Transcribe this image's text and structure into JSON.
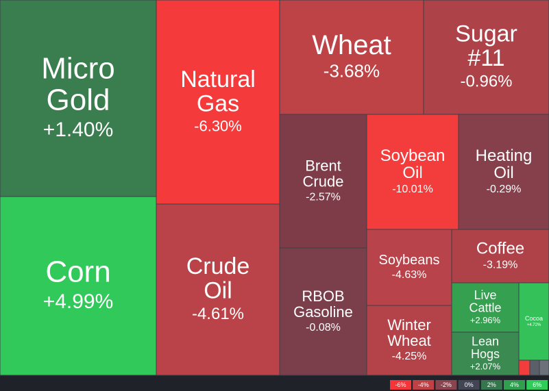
{
  "chart_data": {
    "type": "treemap",
    "items": [
      {
        "name": "Micro Gold",
        "value": 1.4,
        "value_label": "+1.40%",
        "color": "#3a7d4e"
      },
      {
        "name": "Corn",
        "value": 4.99,
        "value_label": "+4.99%",
        "color": "#31c95a"
      },
      {
        "name": "Natural Gas",
        "value": -6.3,
        "value_label": "-6.30%",
        "color": "#f43a3a"
      },
      {
        "name": "Crude Oil",
        "value": -4.61,
        "value_label": "-4.61%",
        "color": "#b94348"
      },
      {
        "name": "Wheat",
        "value": -3.68,
        "value_label": "-3.68%",
        "color": "#bd4347"
      },
      {
        "name": "Sugar #11",
        "value": -0.96,
        "value_label": "-0.96%",
        "color": "#ae4249"
      },
      {
        "name": "Brent Crude",
        "value": -2.57,
        "value_label": "-2.57%",
        "color": "#7d3c48"
      },
      {
        "name": "RBOB Gasoline",
        "value": -0.08,
        "value_label": "-0.08%",
        "color": "#7a3f4b"
      },
      {
        "name": "Soybean Oil",
        "value": -10.01,
        "value_label": "-10.01%",
        "color": "#f33c3c"
      },
      {
        "name": "Heating Oil",
        "value": -0.29,
        "value_label": "-0.29%",
        "color": "#86404b"
      },
      {
        "name": "Soybeans",
        "value": -4.63,
        "value_label": "-4.63%",
        "color": "#b8434a"
      },
      {
        "name": "Winter Wheat",
        "value": -4.25,
        "value_label": "-4.25%",
        "color": "#b44249"
      },
      {
        "name": "Coffee",
        "value": -3.19,
        "value_label": "-3.19%",
        "color": "#af4249"
      },
      {
        "name": "Live Cattle",
        "value": 2.96,
        "value_label": "+2.96%",
        "color": "#35a04f"
      },
      {
        "name": "Lean Hogs",
        "value": 2.07,
        "value_label": "+2.07%",
        "color": "#3a8a51"
      },
      {
        "name": "Cocoa",
        "value": 4.72,
        "value_label": "+4.72%",
        "color": "#35c15a"
      }
    ],
    "legend": {
      "ticks": [
        {
          "value": -6,
          "label": "-6%",
          "color": "#f63538"
        },
        {
          "value": -4,
          "label": "-4%",
          "color": "#bf4045"
        },
        {
          "value": -2,
          "label": "-2%",
          "color": "#8b444e"
        },
        {
          "value": 0,
          "label": "0%",
          "color": "#414554"
        },
        {
          "value": 2,
          "label": "2%",
          "color": "#35764e"
        },
        {
          "value": 4,
          "label": "4%",
          "color": "#2f9e4f"
        },
        {
          "value": 6,
          "label": "6%",
          "color": "#30cc5a"
        }
      ]
    }
  }
}
